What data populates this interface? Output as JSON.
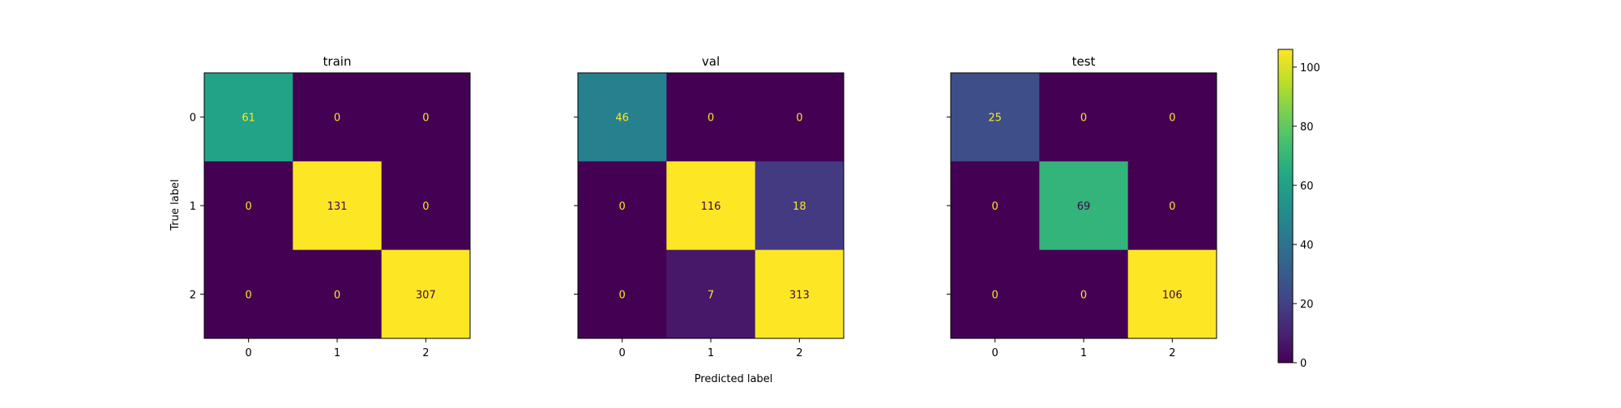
{
  "figure": {
    "xlabel": "Predicted label",
    "ylabel": "True label",
    "colormap": "viridis",
    "colorbar": {
      "ticks": [
        0,
        20,
        40,
        60,
        80,
        100
      ],
      "range": [
        0,
        106
      ]
    }
  },
  "chart_data": [
    {
      "type": "heatmap",
      "title": "train",
      "x_categories": [
        "0",
        "1",
        "2"
      ],
      "y_categories": [
        "0",
        "1",
        "2"
      ],
      "matrix": [
        [
          61,
          0,
          0
        ],
        [
          0,
          131,
          0
        ],
        [
          0,
          0,
          307
        ]
      ],
      "xlabel": "",
      "ylabel": "True label",
      "show_y_tick_labels": true
    },
    {
      "type": "heatmap",
      "title": "val",
      "x_categories": [
        "0",
        "1",
        "2"
      ],
      "y_categories": [
        "0",
        "1",
        "2"
      ],
      "matrix": [
        [
          46,
          0,
          0
        ],
        [
          0,
          116,
          18
        ],
        [
          0,
          7,
          313
        ]
      ],
      "xlabel": "Predicted label",
      "ylabel": "",
      "show_y_tick_labels": false
    },
    {
      "type": "heatmap",
      "title": "test",
      "x_categories": [
        "0",
        "1",
        "2"
      ],
      "y_categories": [
        "0",
        "1",
        "2"
      ],
      "matrix": [
        [
          25,
          0,
          0
        ],
        [
          0,
          69,
          0
        ],
        [
          0,
          0,
          106
        ]
      ],
      "xlabel": "",
      "ylabel": "",
      "show_y_tick_labels": false
    }
  ]
}
